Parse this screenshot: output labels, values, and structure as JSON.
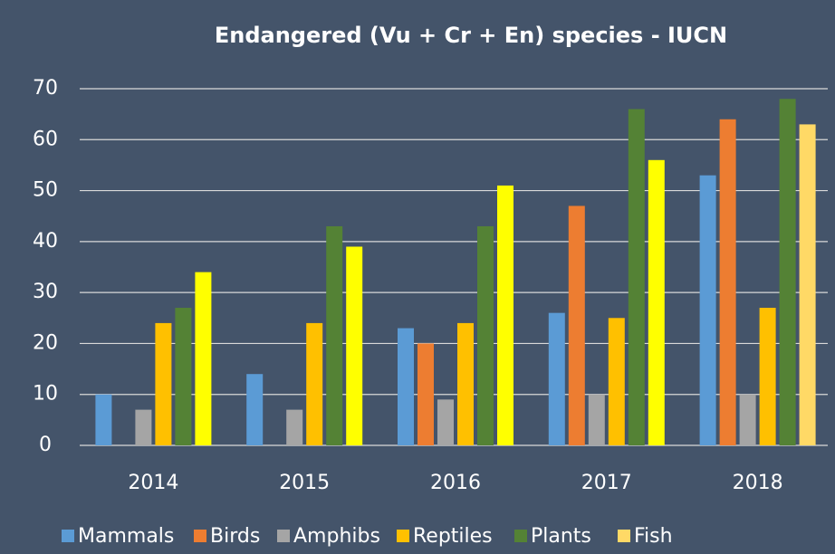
{
  "chart_data": {
    "type": "bar",
    "title": "Endangered  (Vu + Cr + En) species - IUCN",
    "categories": [
      "2014",
      "2015",
      "2016",
      "2017",
      "2018"
    ],
    "series": [
      {
        "name": "Mammals",
        "color": "#5b9bd5",
        "values": [
          10,
          14,
          23,
          26,
          53
        ]
      },
      {
        "name": "Birds",
        "color": "#ed7d31",
        "values": [
          0,
          0,
          20,
          47,
          64
        ]
      },
      {
        "name": "Amphibs",
        "color": "#a5a5a5",
        "values": [
          7,
          7,
          9,
          10,
          10
        ]
      },
      {
        "name": "Reptiles",
        "color": "#ffc000",
        "values": [
          24,
          24,
          24,
          25,
          27
        ]
      },
      {
        "name": "Plants",
        "color": "#548235",
        "values": [
          27,
          43,
          43,
          66,
          68
        ]
      },
      {
        "name": "Fish",
        "color": "#ffd966",
        "point_colors": [
          "#ffff00",
          "#ffff00",
          "#ffff00",
          "#ffff00",
          "#ffd966"
        ],
        "values": [
          34,
          39,
          51,
          56,
          63
        ]
      }
    ],
    "ylim": [
      0,
      70
    ],
    "yticks": [
      0,
      10,
      20,
      30,
      40,
      50,
      60,
      70
    ],
    "grid": true,
    "legend": "bottom"
  }
}
